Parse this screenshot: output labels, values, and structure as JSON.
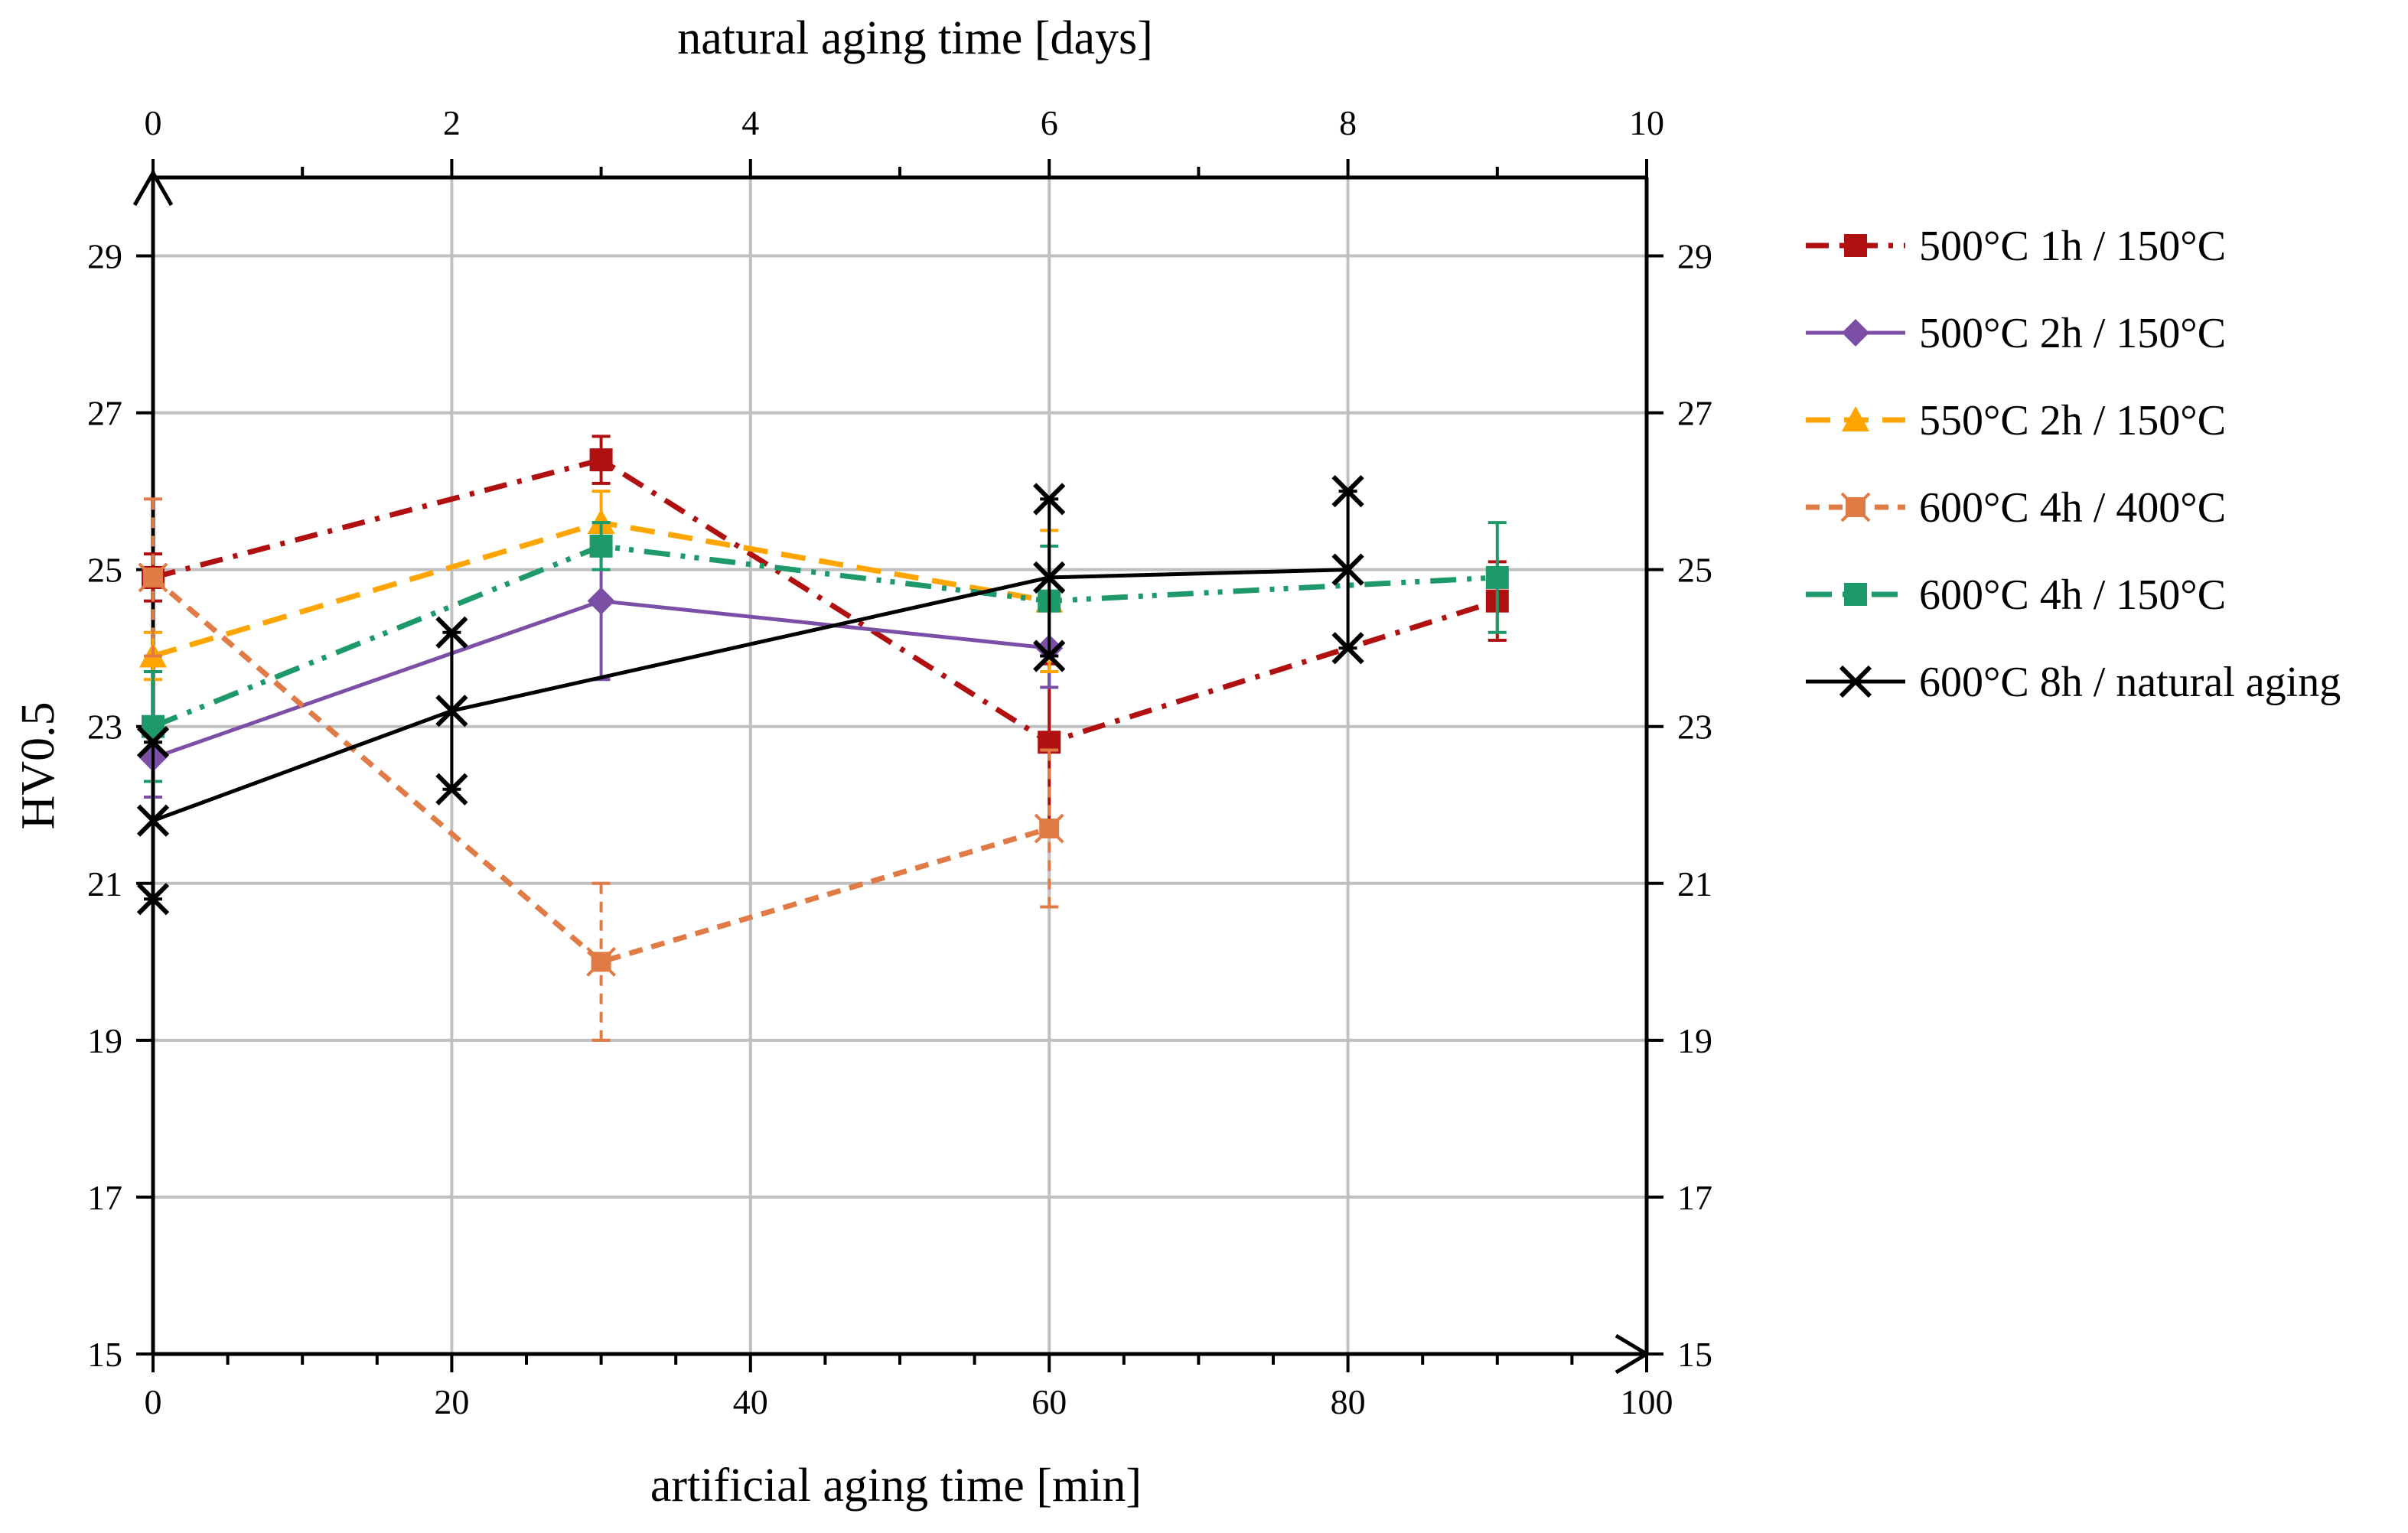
{
  "chart_data": {
    "type": "line",
    "title": "",
    "xlabel": "artificial aging time [min]",
    "x2label": "natural aging time [days]",
    "ylabel": "HV0.5",
    "xlim": [
      0,
      100
    ],
    "x2lim": [
      0,
      10
    ],
    "ylim": [
      15,
      30
    ],
    "x_ticks": [
      0,
      20,
      40,
      60,
      80,
      100
    ],
    "x2_ticks": [
      0,
      2,
      4,
      6,
      8,
      10
    ],
    "y_ticks": [
      15,
      17,
      19,
      21,
      23,
      25,
      27,
      29
    ],
    "grid": true,
    "legend_position": "right",
    "series": [
      {
        "name": "500°C 1h / 150°C",
        "color": "#B01010",
        "dash": "dashdot",
        "marker": "square",
        "x": [
          0,
          30,
          60,
          90
        ],
        "y": [
          24.9,
          26.4,
          22.8,
          24.6
        ],
        "err": [
          0.3,
          0.3,
          1.0,
          0.5
        ]
      },
      {
        "name": "500°C 2h / 150°C",
        "color": "#7B4FA6",
        "dash": "solid",
        "marker": "diamond",
        "x": [
          0,
          30,
          60
        ],
        "y": [
          22.6,
          24.6,
          24.0
        ],
        "err": [
          0.5,
          1.0,
          0.5
        ]
      },
      {
        "name": "550°C 2h / 150°C",
        "color": "#FFA500",
        "dash": "dashed",
        "marker": "triangle",
        "x": [
          0,
          30,
          60
        ],
        "y": [
          23.9,
          25.6,
          24.6
        ],
        "err": [
          0.3,
          0.4,
          0.9
        ]
      },
      {
        "name": "600°C 4h / 400°C",
        "color": "#E07B45",
        "dash": "shortdash",
        "marker": "asterisk",
        "x": [
          0,
          30,
          60
        ],
        "y": [
          24.9,
          20.0,
          21.7
        ],
        "err": [
          1.0,
          1.0,
          1.0
        ]
      },
      {
        "name": "600°C 4h / 150°C",
        "color": "#1E9A6A",
        "dash": "dashdotdot",
        "marker": "square",
        "x": [
          0,
          30,
          60,
          90
        ],
        "y": [
          23.0,
          25.3,
          24.6,
          24.9
        ],
        "err": [
          0.7,
          0.3,
          0.7,
          0.7
        ]
      },
      {
        "name": "600°C 8h / natural aging",
        "color": "#000000",
        "dash": "solid",
        "marker": "x",
        "axis": "natural",
        "x": [
          0,
          2,
          6,
          8
        ],
        "y": [
          21.8,
          23.2,
          24.9,
          25.0
        ],
        "err": [
          1.0,
          1.0,
          1.0,
          1.0
        ]
      }
    ]
  }
}
